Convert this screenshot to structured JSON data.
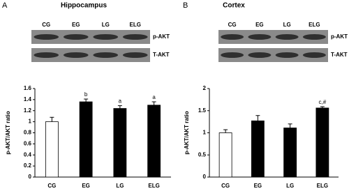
{
  "chart_data": [
    {
      "type": "bar",
      "panel_label": "A",
      "title": "Hippocampus",
      "blot": {
        "lanes": [
          "CG",
          "EG",
          "LG",
          "ELG"
        ],
        "bands": [
          "p-AKT",
          "T-AKT"
        ]
      },
      "ylabel": "p-AKT/AKT ratio",
      "categories": [
        "CG",
        "EG",
        "LG",
        "ELG"
      ],
      "values": [
        1.0,
        1.36,
        1.24,
        1.3
      ],
      "errors": [
        0.08,
        0.05,
        0.05,
        0.06
      ],
      "annotations": [
        null,
        "b",
        "a",
        "a"
      ],
      "colors": [
        "#ffffff",
        "#000000",
        "#000000",
        "#000000"
      ],
      "ylim": [
        0,
        1.6
      ],
      "yticks": [
        0,
        0.2,
        0.4,
        0.6,
        0.8,
        1,
        1.2,
        1.4,
        1.6
      ]
    },
    {
      "type": "bar",
      "panel_label": "B",
      "title": "Cortex",
      "blot": {
        "lanes": [
          "CG",
          "EG",
          "LG",
          "ELG"
        ],
        "bands": [
          "p-AKT",
          "T-AKT"
        ]
      },
      "ylabel": "p-AKT/AKT ratio",
      "categories": [
        "CG",
        "EG",
        "LG",
        "ELG"
      ],
      "values": [
        1.0,
        1.27,
        1.11,
        1.56
      ],
      "errors": [
        0.07,
        0.12,
        0.09,
        0.03
      ],
      "annotations": [
        null,
        null,
        null,
        "c,#"
      ],
      "colors": [
        "#ffffff",
        "#000000",
        "#000000",
        "#000000"
      ],
      "ylim": [
        0,
        2
      ],
      "yticks": [
        0,
        0.5,
        1,
        1.5,
        2
      ]
    }
  ]
}
